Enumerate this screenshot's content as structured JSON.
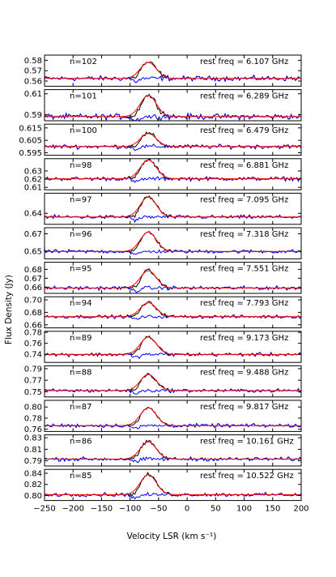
{
  "chart_data": {
    "type": "line",
    "figure": {
      "xlabel": "Velocity LSR (km  s⁻¹)",
      "ylabel": "Flux Density (Jy)",
      "xlim": [
        -250,
        200
      ],
      "xticks": [
        -250,
        -200,
        -150,
        -100,
        -50,
        0,
        50,
        100,
        150,
        200
      ],
      "line_center": -68,
      "line_sigma": 14,
      "colors": {
        "spectrum": "#000000",
        "fit": "#ff0000",
        "residual": "#0000ff",
        "frame": "#000000"
      }
    },
    "panels": [
      {
        "label": "n=102",
        "freq": "rest freq = 6.107 GHz",
        "ylim": [
          0.555,
          0.585
        ],
        "yticks": [
          "0.58",
          "0.57",
          "0.56"
        ],
        "yticks_val": [
          0.58,
          0.57,
          0.56
        ],
        "baseline": 0.5625,
        "peak": 0.0155,
        "noise": 0.0025
      },
      {
        "label": "n=101",
        "freq": "rest freq = 6.289 GHz",
        "ylim": [
          0.584,
          0.614
        ],
        "yticks": [
          "0.61",
          "0.59"
        ],
        "yticks_val": [
          0.61,
          0.59
        ],
        "baseline": 0.588,
        "peak": 0.0205,
        "noise": 0.0028
      },
      {
        "label": "n=100",
        "freq": "rest freq = 6.479 GHz",
        "ylim": [
          0.593,
          0.618
        ],
        "yticks": [
          "0.615",
          "0.605",
          "0.595"
        ],
        "yticks_val": [
          0.615,
          0.605,
          0.595
        ],
        "baseline": 0.6,
        "peak": 0.0105,
        "noise": 0.0018
      },
      {
        "label": "n=98",
        "freq": "rest freq = 6.881 GHz",
        "ylim": [
          0.607,
          0.645
        ],
        "yticks": [
          "0.63",
          "0.62",
          "0.61"
        ],
        "yticks_val": [
          0.63,
          0.62,
          0.61
        ],
        "baseline": 0.6205,
        "peak": 0.023,
        "noise": 0.0025
      },
      {
        "label": "n=97",
        "freq": "rest freq = 7.095 GHz",
        "ylim": [
          0.628,
          0.662
        ],
        "yticks": [
          "0.64"
        ],
        "yticks_val": [
          0.64
        ],
        "baseline": 0.636,
        "peak": 0.022,
        "noise": 0.0022
      },
      {
        "label": "n=96",
        "freq": "rest freq = 7.318 GHz",
        "ylim": [
          0.641,
          0.677
        ],
        "yticks": [
          "0.67",
          "0.65"
        ],
        "yticks_val": [
          0.67,
          0.65
        ],
        "baseline": 0.6495,
        "peak": 0.0225,
        "noise": 0.0022
      },
      {
        "label": "n=95",
        "freq": "rest freq = 7.551 GHz",
        "ylim": [
          0.653,
          0.688
        ],
        "yticks": [
          "0.68",
          "0.67",
          "0.66"
        ],
        "yticks_val": [
          0.68,
          0.67,
          0.66
        ],
        "baseline": 0.659,
        "peak": 0.0195,
        "noise": 0.0022
      },
      {
        "label": "n=94",
        "freq": "rest freq = 7.793 GHz",
        "ylim": [
          0.655,
          0.705
        ],
        "yticks": [
          "0.70",
          "0.68",
          "0.66"
        ],
        "yticks_val": [
          0.7,
          0.68,
          0.66
        ],
        "baseline": 0.673,
        "peak": 0.0225,
        "noise": 0.0028
      },
      {
        "label": "n=89",
        "freq": "rest freq = 9.173 GHz",
        "ylim": [
          0.725,
          0.782
        ],
        "yticks": [
          "0.78",
          "0.76",
          "0.74"
        ],
        "yticks_val": [
          0.78,
          0.76,
          0.74
        ],
        "baseline": 0.7395,
        "peak": 0.032,
        "noise": 0.0035
      },
      {
        "label": "n=88",
        "freq": "rest freq = 9.488 GHz",
        "ylim": [
          0.741,
          0.795
        ],
        "yticks": [
          "0.79",
          "0.77",
          "0.75"
        ],
        "yticks_val": [
          0.79,
          0.77,
          0.75
        ],
        "baseline": 0.752,
        "peak": 0.028,
        "noise": 0.0032
      },
      {
        "label": "n=87",
        "freq": "rest freq = 9.817 GHz",
        "ylim": [
          0.756,
          0.812
        ],
        "yticks": [
          "0.80",
          "0.78",
          "0.76"
        ],
        "yticks_val": [
          0.8,
          0.78,
          0.76
        ],
        "baseline": 0.7665,
        "peak": 0.032,
        "noise": 0.0035
      },
      {
        "label": "n=86",
        "freq": "rest freq = 10.161 GHz",
        "ylim": [
          0.781,
          0.835
        ],
        "yticks": [
          "0.83",
          "0.81",
          "0.79"
        ],
        "yticks_val": [
          0.83,
          0.81,
          0.79
        ],
        "baseline": 0.793,
        "peak": 0.03,
        "noise": 0.0035
      },
      {
        "label": "n=85",
        "freq": "rest freq = 10.522 GHz",
        "ylim": [
          0.791,
          0.847
        ],
        "yticks": [
          "0.84",
          "0.82",
          "0.80"
        ],
        "yticks_val": [
          0.84,
          0.82,
          0.8
        ],
        "baseline": 0.8015,
        "peak": 0.036,
        "noise": 0.0035
      }
    ]
  }
}
